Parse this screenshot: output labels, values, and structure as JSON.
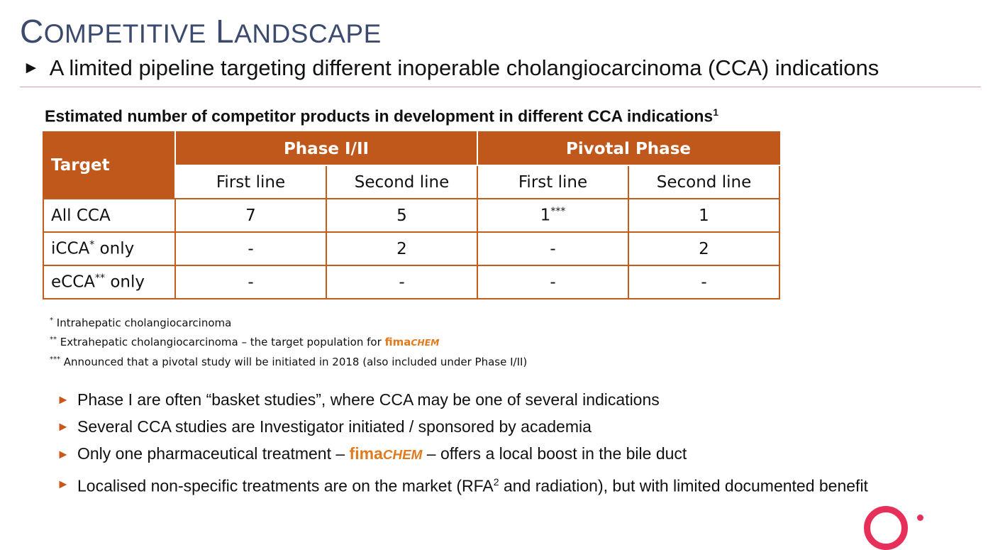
{
  "header": {
    "title": {
      "c1": "C",
      "r1": "OMPETITIVE",
      "c2": "L",
      "r2": "ANDSCAPE"
    },
    "bullet_glyph": "►",
    "subtitle": "A limited pipeline targeting different inoperable cholangiocarcinoma (CCA) indications"
  },
  "table": {
    "caption": "Estimated number of competitor products in development in different CCA indications",
    "caption_sup": "1",
    "header": {
      "target": "Target",
      "groups": [
        "Phase I/II",
        "Pivotal Phase"
      ],
      "subcolumns": [
        "First line",
        "Second line",
        "First line",
        "Second line"
      ]
    },
    "rows": [
      {
        "label": "All CCA",
        "label_sup": "",
        "cells": [
          "7",
          "5",
          "1",
          "1"
        ],
        "cell3_sup": "***"
      },
      {
        "label": "iCCA",
        "label_sup": "*",
        "label_suffix": " only",
        "cells": [
          "-",
          "2",
          "-",
          "2"
        ]
      },
      {
        "label": "eCCA",
        "label_sup": "**",
        "label_suffix": " only",
        "cells": [
          "-",
          "-",
          "-",
          "-"
        ]
      }
    ]
  },
  "footnotes": [
    {
      "mark": "*",
      "text": "Intrahepatic cholangiocarcinoma"
    },
    {
      "mark": "**",
      "text": "Extrahepatic cholangiocarcinoma – the target population for ",
      "brand_a": "fima",
      "brand_b": "CHEM"
    },
    {
      "mark": "***",
      "text": "Announced that a pivotal study will be initiated in 2018 (also included under Phase I/II)"
    }
  ],
  "bullets": [
    {
      "text": "Phase I are often “basket studies”, where CCA may be one of several indications"
    },
    {
      "text": "Several CCA studies are Investigator initiated / sponsored by academia"
    },
    {
      "pre": "Only one pharmaceutical treatment – ",
      "brand_a": "fima",
      "brand_b": "CHEM",
      "post": " – offers a local boost in the bile duct"
    },
    {
      "pre": "Localised non-specific treatments are on the market (RFA",
      "sup": "2",
      "post": " and radiation), but with limited documented benefit"
    }
  ],
  "colors": {
    "accent": "#c0571b",
    "brand": "#e07a1d",
    "title": "#3c4a6e",
    "logo": "#e6305a"
  }
}
